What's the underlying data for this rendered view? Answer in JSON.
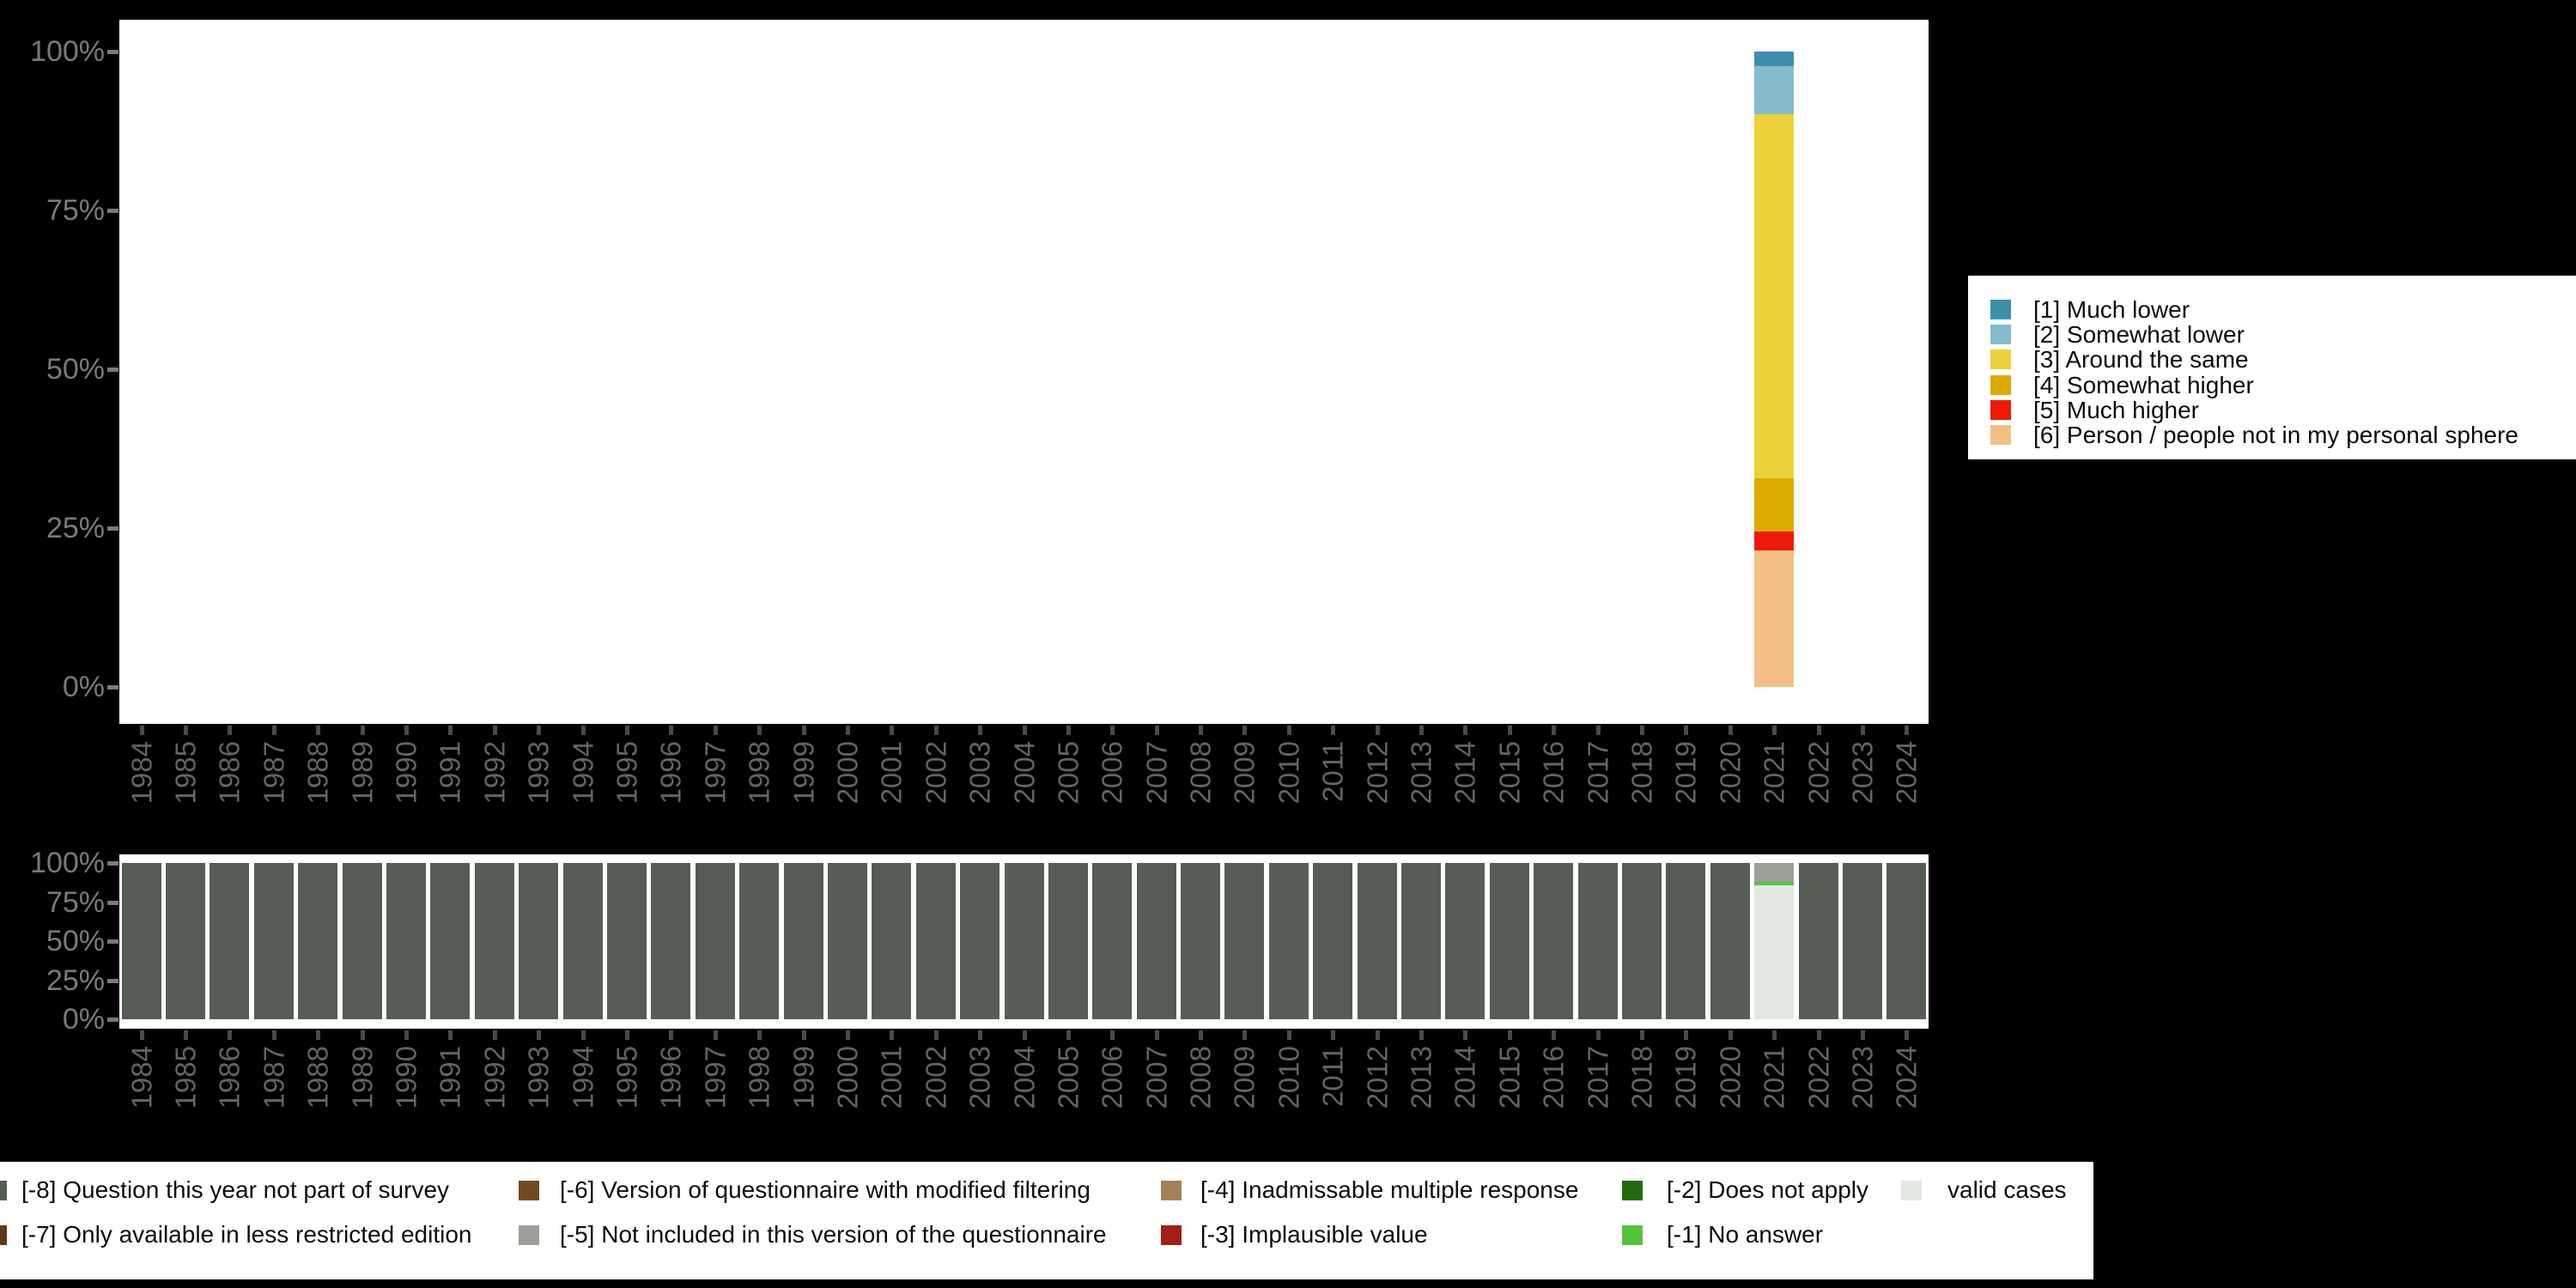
{
  "years": [
    "1984",
    "1985",
    "1986",
    "1987",
    "1988",
    "1989",
    "1990",
    "1991",
    "1992",
    "1993",
    "1994",
    "1995",
    "1996",
    "1997",
    "1998",
    "1999",
    "2000",
    "2001",
    "2002",
    "2003",
    "2004",
    "2005",
    "2006",
    "2007",
    "2008",
    "2009",
    "2010",
    "2011",
    "2012",
    "2013",
    "2014",
    "2015",
    "2016",
    "2017",
    "2018",
    "2019",
    "2020",
    "2021",
    "2022",
    "2023",
    "2024"
  ],
  "y_axis": {
    "ticks": [
      {
        "label": "100%",
        "value": 100
      },
      {
        "label": "75%",
        "value": 75
      },
      {
        "label": "50%",
        "value": 50
      },
      {
        "label": "25%",
        "value": 25
      },
      {
        "label": "0%",
        "value": 0
      }
    ]
  },
  "colors": {
    "background": "#000000",
    "plot_background": "#ffffff",
    "axis_label": "#7a7a7a",
    "x_label": "#646464",
    "x_tick": "#4a4a4a"
  },
  "chart_data": [
    {
      "type": "bar",
      "stacked": true,
      "title": "",
      "xlabel": "",
      "ylabel": "",
      "ylim": [
        0,
        100
      ],
      "grid": false,
      "legend_position": "right",
      "categories": "years",
      "note": "Only 2021 has data; all other years are empty in this panel.",
      "legend": [
        {
          "label": "[1] Much lower",
          "color": "#3d8eae"
        },
        {
          "label": "[2] Somewhat lower",
          "color": "#85bccb"
        },
        {
          "label": "[3] Around the same",
          "color": "#ecd13b"
        },
        {
          "label": "[4] Somewhat higher",
          "color": "#dcab00"
        },
        {
          "label": "[5] Much higher",
          "color": "#ee1907"
        },
        {
          "label": "[6] Person / people not in my personal sphere",
          "color": "#f2c084"
        }
      ],
      "bars": {
        "2021": [
          {
            "label": "[1] Much lower",
            "value": 2.3,
            "color": "#3d8eae"
          },
          {
            "label": "[2] Somewhat lower",
            "value": 7.6,
            "color": "#85bccb"
          },
          {
            "label": "[3] Around the same",
            "value": 57.2,
            "color": "#ecd13b"
          },
          {
            "label": "[4] Somewhat higher",
            "value": 8.4,
            "color": "#dcab00"
          },
          {
            "label": "[5] Much higher",
            "value": 3.0,
            "color": "#ee1907"
          },
          {
            "label": "[6] Person / people not in my personal sphere",
            "value": 21.5,
            "color": "#f2c084"
          }
        ]
      }
    },
    {
      "type": "bar",
      "stacked": true,
      "title": "",
      "xlabel": "",
      "ylabel": "",
      "ylim": [
        0,
        100
      ],
      "grid": false,
      "legend_position": "bottom",
      "categories": "years",
      "note": "Missing-values panel: every year is 100% [-8] except 2021.",
      "default_bar": [
        {
          "label": "[-8] Question this year not part of survey",
          "value": 100,
          "color": "#555d55"
        }
      ],
      "bars": {
        "2021": [
          {
            "label": "[-5] Not included in this version of the questionnaire",
            "value": 12.0,
            "color": "#9aa097"
          },
          {
            "label": "[-1] No answer",
            "value": 2.5,
            "color": "#55c33e"
          },
          {
            "label": "valid cases",
            "value": 85.5,
            "color": "#e2e7e0"
          }
        ]
      },
      "legend": [
        {
          "label": "[-8] Question this year not part of survey",
          "color": "#555d55",
          "col": 0,
          "row": 0
        },
        {
          "label": "[-7] Only available in less restricted edition",
          "color": "#5e3a1b",
          "col": 0,
          "row": 1
        },
        {
          "label": "[-6] Version of questionnaire with modified filtering",
          "color": "#74491f",
          "col": 1,
          "row": 0
        },
        {
          "label": "[-5] Not included in this version of the questionnaire",
          "color": "#9aa097",
          "col": 1,
          "row": 1
        },
        {
          "label": "[-4] Inadmissable multiple response",
          "color": "#a58058",
          "col": 2,
          "row": 0
        },
        {
          "label": "[-3] Implausible value",
          "color": "#a02017",
          "col": 2,
          "row": 1
        },
        {
          "label": "[-2] Does not apply",
          "color": "#226b0e",
          "col": 3,
          "row": 0
        },
        {
          "label": "[-1] No answer",
          "color": "#55c33e",
          "col": 3,
          "row": 1
        },
        {
          "label": "valid cases",
          "color": "#e2e7e0",
          "col": 4,
          "row": 0
        }
      ]
    }
  ]
}
